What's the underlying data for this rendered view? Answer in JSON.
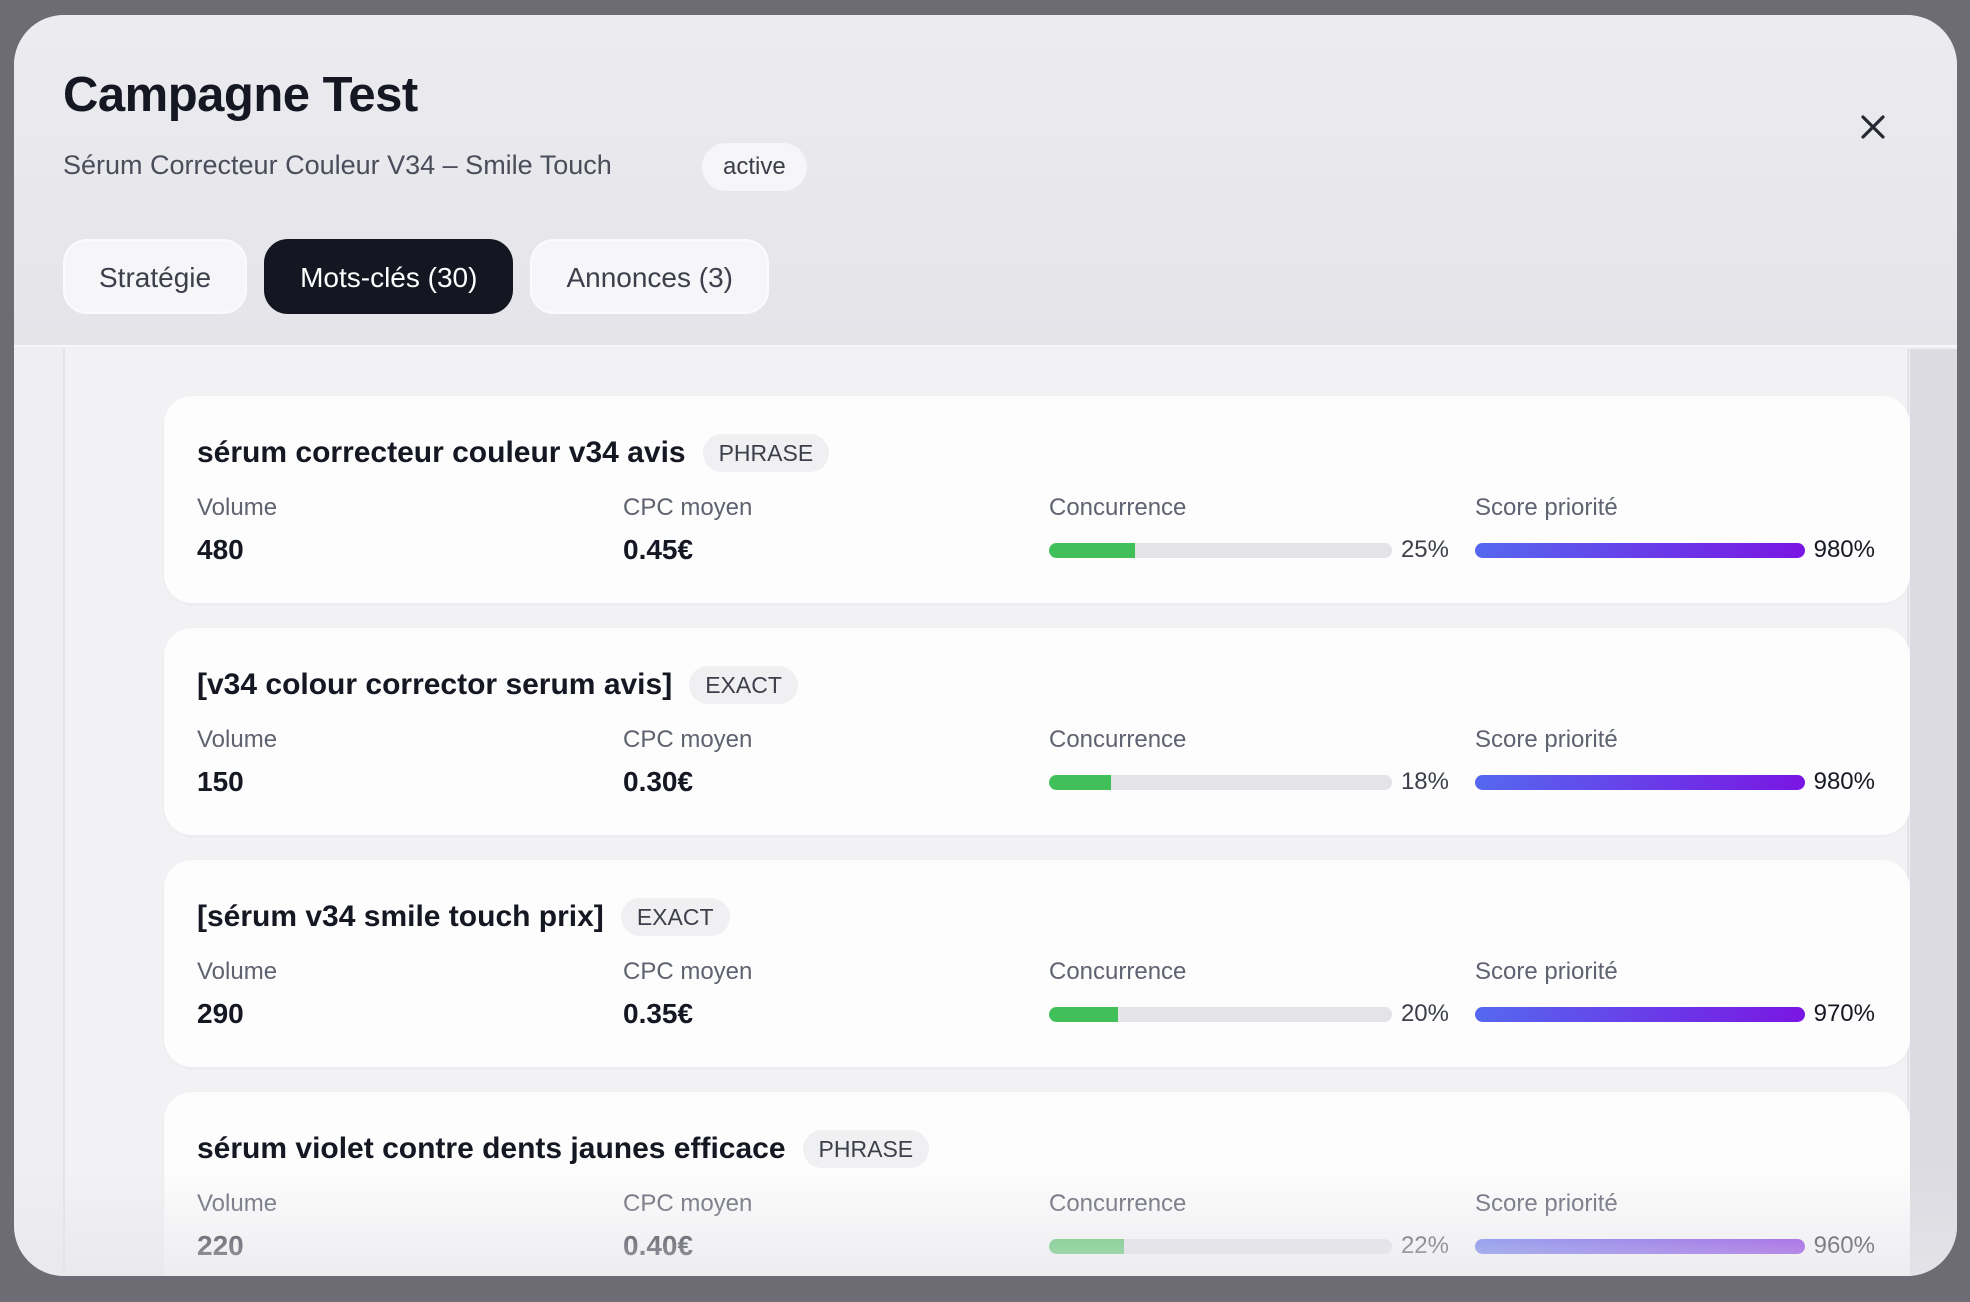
{
  "header": {
    "title": "Campagne Test",
    "subtitle": "Sérum Correcteur Couleur V34 – Smile Touch",
    "status": "active"
  },
  "tabs": [
    {
      "label": "Stratégie"
    },
    {
      "label": "Mots-clés (30)",
      "active": true
    },
    {
      "label": "Annonces (3)"
    }
  ],
  "labels": {
    "volume": "Volume",
    "cpc": "CPC moyen",
    "competition": "Concurrence",
    "score": "Score priorité"
  },
  "keywords": [
    {
      "text": "sérum correcteur couleur v34 avis",
      "match": "PHRASE",
      "volume": "480",
      "cpc": "0.45€",
      "competition": 25,
      "competition_label": "25%",
      "score_label": "980%"
    },
    {
      "text": "[v34 colour corrector serum avis]",
      "match": "EXACT",
      "volume": "150",
      "cpc": "0.30€",
      "competition": 18,
      "competition_label": "18%",
      "score_label": "980%"
    },
    {
      "text": "[sérum v34 smile touch prix]",
      "match": "EXACT",
      "volume": "290",
      "cpc": "0.35€",
      "competition": 20,
      "competition_label": "20%",
      "score_label": "970%"
    },
    {
      "text": "sérum violet contre dents jaunes efficace",
      "match": "PHRASE",
      "volume": "220",
      "cpc": "0.40€",
      "competition": 22,
      "competition_label": "22%",
      "score_label": "960%"
    }
  ],
  "colors": {
    "competition": "#41bf59",
    "score_start": "#5568ef",
    "score_end": "#7a16e2",
    "active_tab": "#141722"
  }
}
